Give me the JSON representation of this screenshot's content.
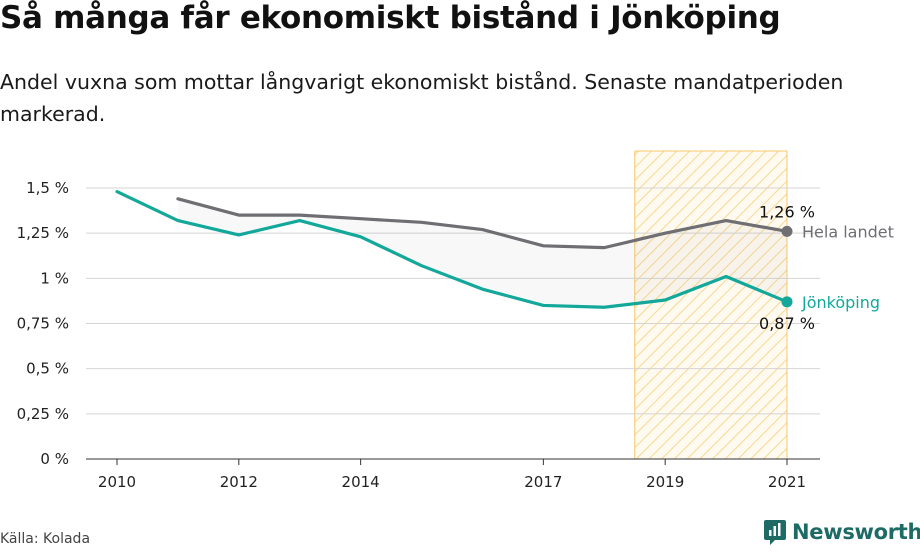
{
  "title": "Så många får ekonomiskt bistånd i Jönköping",
  "subtitle": "Andel vuxna som mottar långvarigt ekonomiskt bistånd. Senaste mandatperioden markerad.",
  "source": "Källa: Kolada",
  "brand": "Newsworthy",
  "colors": {
    "jonkoping": "#13a89a",
    "national": "#6e6e73",
    "highlight": "#fbe0a3",
    "highlight_border": "#f5c86a"
  },
  "chart_data": {
    "type": "line",
    "x": [
      2010,
      2011,
      2012,
      2013,
      2014,
      2015,
      2016,
      2017,
      2018,
      2019,
      2020,
      2021
    ],
    "xticks": [
      2010,
      2012,
      2014,
      2017,
      2019,
      2021
    ],
    "xtick_labels": [
      "2010",
      "2012",
      "2014",
      "2017",
      "2019",
      "2021"
    ],
    "ylim": [
      0,
      1.5
    ],
    "yticks": [
      0,
      0.25,
      0.5,
      0.75,
      1,
      1.25,
      1.5
    ],
    "ytick_labels": [
      "0 %",
      "0,25 %",
      "0,5 %",
      "0,75 %",
      "1 %",
      "1,25 %",
      "1,5 %"
    ],
    "grid": true,
    "highlight_period": [
      2018.5,
      2021
    ],
    "series": [
      {
        "name": "Hela landet",
        "key": "national",
        "values": [
          null,
          1.44,
          1.35,
          1.35,
          1.33,
          1.31,
          1.27,
          1.18,
          1.17,
          1.25,
          1.32,
          1.26
        ],
        "end_label": "1,26 %"
      },
      {
        "name": "Jönköping",
        "key": "jonkoping",
        "values": [
          1.48,
          1.32,
          1.24,
          1.32,
          1.23,
          1.07,
          0.94,
          0.85,
          0.84,
          0.88,
          1.01,
          0.87
        ],
        "end_label": "0,87 %"
      }
    ]
  }
}
